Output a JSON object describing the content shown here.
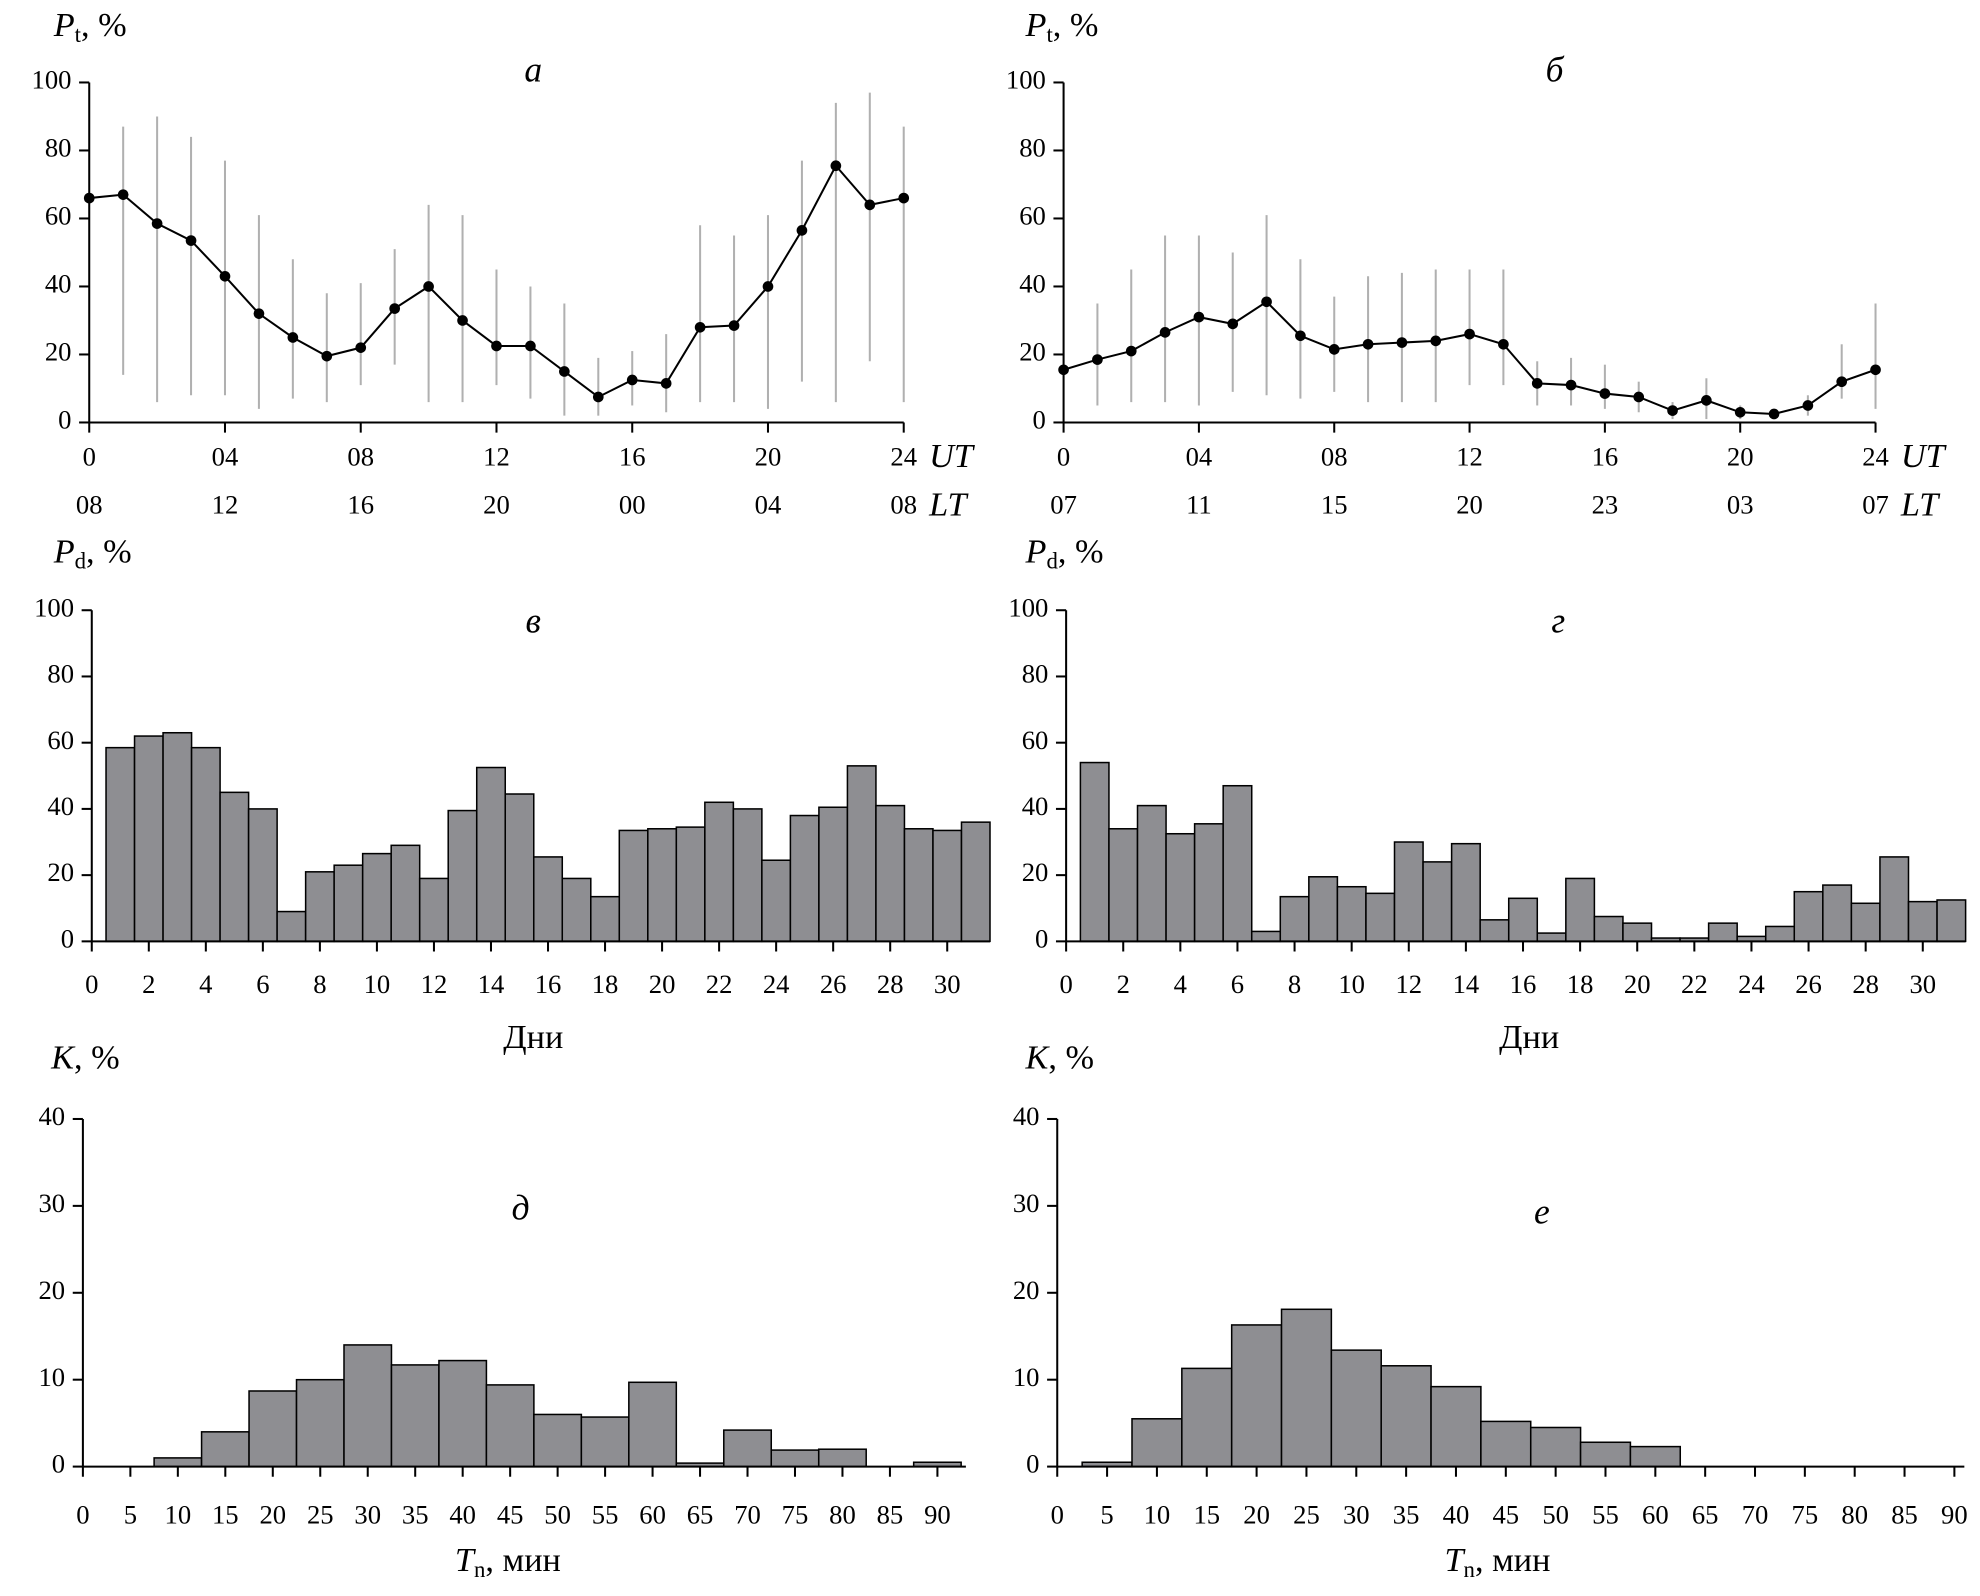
{
  "chart_data": [
    {
      "type": "line",
      "title": "а",
      "ylabel": {
        "symbol": "P",
        "sub": "t",
        "unit": ", %"
      },
      "xlabel": "UT",
      "x2label": "LT",
      "x": [
        0,
        1,
        2,
        3,
        4,
        5,
        6,
        7,
        8,
        9,
        10,
        11,
        12,
        13,
        14,
        15,
        16,
        17,
        18,
        19,
        20,
        21,
        22,
        23,
        24
      ],
      "values": [
        66,
        67,
        58.5,
        53.5,
        43,
        32,
        25,
        19.5,
        22,
        33.5,
        40,
        30,
        22.5,
        22.5,
        15,
        7.5,
        12.5,
        11.5,
        28,
        28.5,
        40,
        56.5,
        75.5,
        64,
        66
      ],
      "err_low": [
        null,
        14,
        6,
        8,
        8,
        4,
        7,
        6,
        11,
        17,
        6,
        6,
        11,
        7,
        2,
        2,
        5,
        3,
        6,
        6,
        4,
        12,
        6,
        18,
        6
      ],
      "err_high": [
        null,
        87,
        90,
        84,
        77,
        61,
        48,
        38,
        41,
        51,
        64,
        61,
        45,
        40,
        35,
        19,
        21,
        26,
        58,
        55,
        61,
        77,
        94,
        97,
        87
      ],
      "color": "#000000",
      "err_color": "#b0b0b0",
      "xlim": [
        0,
        24
      ],
      "ylim": [
        0,
        100
      ],
      "xticks": [
        0,
        {
          "value": 4,
          "label": "04"
        },
        {
          "value": 8,
          "label": "08"
        },
        12,
        16,
        20,
        24
      ],
      "x2ticks": [
        {
          "value": 0,
          "label": "08"
        },
        {
          "value": 4,
          "label": "12"
        },
        {
          "value": 8,
          "label": "16"
        },
        {
          "value": 12,
          "label": "20"
        },
        {
          "value": 16,
          "label": "00"
        },
        {
          "value": 20,
          "label": "04"
        },
        {
          "value": 24,
          "label": "08"
        }
      ],
      "yticks": [
        0,
        20,
        40,
        60,
        80,
        100
      ]
    },
    {
      "type": "line",
      "title": "б",
      "ylabel": {
        "symbol": "P",
        "sub": "t",
        "unit": ", %"
      },
      "xlabel": "UT",
      "x2label": "LT",
      "x": [
        0,
        1,
        2,
        3,
        4,
        5,
        6,
        7,
        8,
        9,
        10,
        11,
        12,
        13,
        14,
        15,
        16,
        17,
        18,
        19,
        20,
        21,
        22,
        23,
        24
      ],
      "values": [
        15.5,
        18.5,
        21,
        26.5,
        31,
        29,
        35.5,
        25.5,
        21.5,
        23,
        23.5,
        24,
        26,
        23,
        11.5,
        11,
        8.5,
        7.5,
        3.5,
        6.5,
        3,
        2.5,
        5,
        12,
        15.5
      ],
      "err_low": [
        null,
        5,
        6,
        6,
        5,
        9,
        8,
        7,
        9,
        6,
        6,
        6,
        11,
        11,
        5,
        5,
        4,
        3,
        1,
        1,
        1,
        1,
        2,
        7,
        4
      ],
      "err_high": [
        null,
        35,
        45,
        55,
        55,
        50,
        61,
        48,
        37,
        43,
        44,
        45,
        45,
        45,
        18,
        19,
        17,
        12,
        6,
        13,
        5,
        4,
        8,
        23,
        35
      ],
      "color": "#000000",
      "err_color": "#b0b0b0",
      "xlim": [
        0,
        24
      ],
      "ylim": [
        0,
        100
      ],
      "xticks": [
        0,
        {
          "value": 4,
          "label": "04"
        },
        {
          "value": 8,
          "label": "08"
        },
        12,
        16,
        20,
        24
      ],
      "x2ticks": [
        {
          "value": 0,
          "label": "07"
        },
        {
          "value": 4,
          "label": "11"
        },
        {
          "value": 8,
          "label": "15"
        },
        {
          "value": 12,
          "label": "20"
        },
        {
          "value": 16,
          "label": "23"
        },
        {
          "value": 20,
          "label": "03"
        },
        {
          "value": 24,
          "label": "07"
        }
      ],
      "yticks": [
        0,
        20,
        40,
        60,
        80,
        100
      ]
    },
    {
      "type": "bar",
      "title": "в",
      "ylabel": {
        "symbol": "P",
        "sub": "d",
        "unit": ", %"
      },
      "xlabel": "Дни",
      "x": [
        1,
        2,
        3,
        4,
        5,
        6,
        7,
        8,
        9,
        10,
        11,
        12,
        13,
        14,
        15,
        16,
        17,
        18,
        19,
        20,
        21,
        22,
        23,
        24,
        25,
        26,
        27,
        28,
        29,
        30,
        31
      ],
      "values": [
        58.5,
        62,
        63,
        58.5,
        45,
        40,
        9,
        21,
        23,
        26.5,
        29,
        19,
        39.5,
        52.5,
        44.5,
        25.5,
        19,
        13.5,
        33.5,
        34,
        34.5,
        42,
        40,
        24.5,
        38,
        40.5,
        53,
        41,
        34,
        33.5,
        36
      ],
      "color": "#8e8e92",
      "xlim": [
        0,
        31.5
      ],
      "ylim": [
        0,
        100
      ],
      "xticks": [
        0,
        2,
        4,
        6,
        8,
        10,
        12,
        14,
        16,
        18,
        20,
        22,
        24,
        26,
        28,
        30
      ],
      "yticks": [
        0,
        20,
        40,
        60,
        80,
        100
      ]
    },
    {
      "type": "bar",
      "title": "г",
      "ylabel": {
        "symbol": "P",
        "sub": "d",
        "unit": ", %"
      },
      "xlabel": "Дни",
      "x": [
        1,
        2,
        3,
        4,
        5,
        6,
        7,
        8,
        9,
        10,
        11,
        12,
        13,
        14,
        15,
        16,
        17,
        18,
        19,
        20,
        21,
        22,
        23,
        24,
        25,
        26,
        27,
        28,
        29,
        30,
        31
      ],
      "values": [
        54,
        34,
        41,
        32.5,
        35.5,
        47,
        3,
        13.5,
        19.5,
        16.5,
        14.5,
        30,
        24,
        29.5,
        6.5,
        13,
        2.5,
        19,
        7.5,
        5.5,
        1,
        1,
        5.5,
        1.5,
        4.5,
        15,
        17,
        11.5,
        25.5,
        12,
        12.5
      ],
      "color": "#8e8e92",
      "xlim": [
        0,
        31.5
      ],
      "ylim": [
        0,
        100
      ],
      "xticks": [
        0,
        2,
        4,
        6,
        8,
        10,
        12,
        14,
        16,
        18,
        20,
        22,
        24,
        26,
        28,
        30
      ],
      "yticks": [
        0,
        20,
        40,
        60,
        80,
        100
      ]
    },
    {
      "type": "histogram",
      "title": "д",
      "ylabel": {
        "symbol": "K",
        "unit": ", %"
      },
      "xlabel": {
        "symbol": "T",
        "sub": "n",
        "unit": ", мин"
      },
      "bins": [
        2.5,
        7.5,
        12.5,
        17.5,
        22.5,
        27.5,
        32.5,
        37.5,
        42.5,
        47.5,
        52.5,
        57.5,
        62.5,
        67.5,
        72.5,
        77.5,
        82.5,
        87.5,
        92.5
      ],
      "values": [
        0,
        1,
        4,
        8.7,
        10,
        14,
        11.7,
        12.2,
        9.4,
        6,
        5.7,
        9.7,
        0.4,
        4.2,
        1.9,
        2,
        0,
        0.5
      ],
      "color": "#8e8e92",
      "xlim": [
        0,
        93
      ],
      "ylim": [
        0,
        40
      ],
      "xticks": [
        0,
        5,
        10,
        15,
        20,
        25,
        30,
        35,
        40,
        45,
        50,
        55,
        60,
        65,
        70,
        75,
        80,
        85,
        90
      ],
      "yticks": [
        0,
        10,
        20,
        30,
        40
      ]
    },
    {
      "type": "histogram",
      "title": "е",
      "ylabel": {
        "symbol": "K",
        "unit": ", %"
      },
      "xlabel": {
        "symbol": "T",
        "sub": "n",
        "unit": ", мин"
      },
      "bins": [
        2.5,
        7.5,
        12.5,
        17.5,
        22.5,
        27.5,
        32.5,
        37.5,
        42.5,
        47.5,
        52.5,
        57.5,
        62.5
      ],
      "values": [
        0.5,
        5.5,
        11.3,
        16.3,
        18.1,
        13.4,
        11.6,
        9.2,
        5.2,
        4.5,
        2.8,
        2.3
      ],
      "color": "#8e8e92",
      "xlim": [
        0,
        91
      ],
      "ylim": [
        0,
        40
      ],
      "xticks": [
        0,
        5,
        10,
        15,
        20,
        25,
        30,
        35,
        40,
        45,
        50,
        55,
        60,
        65,
        70,
        75,
        80,
        85,
        90
      ],
      "yticks": [
        0,
        10,
        20,
        30,
        40
      ]
    }
  ]
}
